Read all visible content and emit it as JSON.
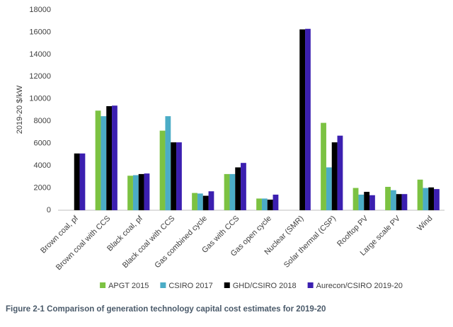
{
  "chart_data": {
    "type": "bar",
    "y_label": "2019-20 $/kW",
    "caption": "Figure 2-1 Comparison of generation technology capital cost estimates for 2019-20",
    "categories": [
      "Brown coal, pf",
      "Brown coal with CCS",
      "Black coal, pf",
      "Black coal with CCS",
      "Gas combined cycle",
      "Gas with CCS",
      "Gas open cycle",
      "Nuclear (SMR)",
      "Solar thermal (CSP)",
      "Rooftop PV",
      "Large scale PV",
      "Wind"
    ],
    "series": [
      {
        "name": "APGT 2015",
        "color": "#7cc242",
        "values": [
          null,
          8950,
          3100,
          7150,
          1550,
          3250,
          1050,
          null,
          7850,
          2000,
          2100,
          2750
        ]
      },
      {
        "name": "CSIRO 2017",
        "color": "#4bacc6",
        "values": [
          null,
          8450,
          3150,
          8450,
          1500,
          3250,
          1050,
          null,
          3850,
          1400,
          1800,
          2000
        ]
      },
      {
        "name": "GHD/CSIRO 2018",
        "color": "#000000",
        "values": [
          5100,
          9350,
          3250,
          6100,
          1300,
          3850,
          950,
          16250,
          6100,
          1650,
          1450,
          2050
        ]
      },
      {
        "name": "Aurecon/CSIRO 2019-20",
        "color": "#3b1fb0",
        "values": [
          5100,
          9400,
          3300,
          6100,
          1700,
          4250,
          1400,
          16300,
          6700,
          1350,
          1450,
          1900
        ]
      }
    ],
    "ylim": [
      0,
      18000
    ],
    "yticks": [
      0,
      2000,
      4000,
      6000,
      8000,
      10000,
      12000,
      14000,
      16000,
      18000
    ],
    "grid": false,
    "legend": "bottom"
  }
}
